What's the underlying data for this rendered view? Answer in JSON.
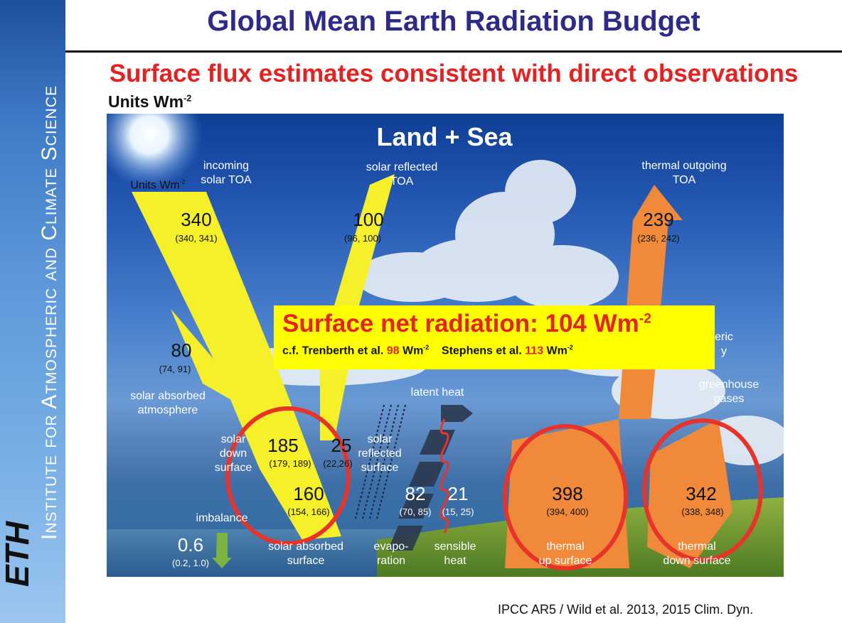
{
  "title": "Global Mean Earth Radiation Budget",
  "subtitle": "Surface flux estimates consistent with direct observations",
  "units_heading": {
    "text": "Units Wm",
    "exp": "-2"
  },
  "sidebar_text": "Institute for Atmospheric and Climate Science",
  "logo_text": "ETH",
  "diagram": {
    "heading": "Land + Sea",
    "units_small": {
      "text": "Units Wm",
      "exp": "-2"
    },
    "flows": {
      "incoming_solar": {
        "label_1": "incoming",
        "label_2": "solar TOA",
        "value": "340",
        "range": "(340, 341)"
      },
      "solar_reflected_toa": {
        "label_1": "solar reflected",
        "label_2": "TOA",
        "value": "100",
        "range": "(96, 100)"
      },
      "thermal_outgoing": {
        "label_1": "thermal outgoing",
        "label_2": "TOA",
        "value": "239",
        "range": "(236, 242)"
      },
      "solar_absorbed_atmosphere": {
        "value": "80",
        "range": "(74, 91)",
        "label_1": "solar absorbed",
        "label_2": "atmosphere"
      },
      "solar_down_surface": {
        "label_1": "solar",
        "label_2": "down",
        "label_3": "surface",
        "value": "185",
        "range": "(179, 189)"
      },
      "solar_reflected_surface": {
        "label_1": "solar",
        "label_2": "reflected",
        "label_3": "surface",
        "value": "25",
        "range": "(22,26)"
      },
      "solar_absorbed_surface": {
        "value": "160",
        "range": "(154, 166)",
        "label_1": "solar absorbed",
        "label_2": "surface"
      },
      "latent_heat": {
        "label": "latent heat"
      },
      "evaporation": {
        "value": "82",
        "range": "(70, 85)",
        "label_1": "evapo-",
        "label_2": "ration"
      },
      "sensible_heat": {
        "value": "21",
        "range": "(15, 25)",
        "label_1": "sensible",
        "label_2": "heat"
      },
      "thermal_up_surface": {
        "value": "398",
        "range": "(394, 400)",
        "label_1": "thermal",
        "label_2": "up surface"
      },
      "thermal_down_surface": {
        "value": "342",
        "range": "(338, 348)",
        "label_1": "thermal",
        "label_2": "down surface"
      },
      "greenhouse": {
        "label_1": "greenhouse",
        "label_2": "gases"
      },
      "atmospheric_partial": {
        "label_1": "eric",
        "label_2": "y"
      },
      "imbalance": {
        "label": "imbalance",
        "value": "0.6",
        "range": "(0.2, 1.0)"
      }
    },
    "highlight": {
      "main": "Surface net radiation: 104 Wm",
      "main_exp": "-2",
      "cf": "c.f. Trenberth et al.",
      "trenberth_value": "98",
      "unit": "Wm",
      "unit_exp": "-2",
      "stephens": "Stephens et al.",
      "stephens_value": "113"
    }
  },
  "citation": "IPCC AR5 / Wild et al. 2013, 2015 Clim. Dyn.",
  "colors": {
    "title": "#2e2a8a",
    "subtitle": "#e52222",
    "solar_arrow": "#f5f02a",
    "thermal_arrow": "#f08a3a",
    "circle": "#e8332a",
    "box": "#ffff00"
  }
}
